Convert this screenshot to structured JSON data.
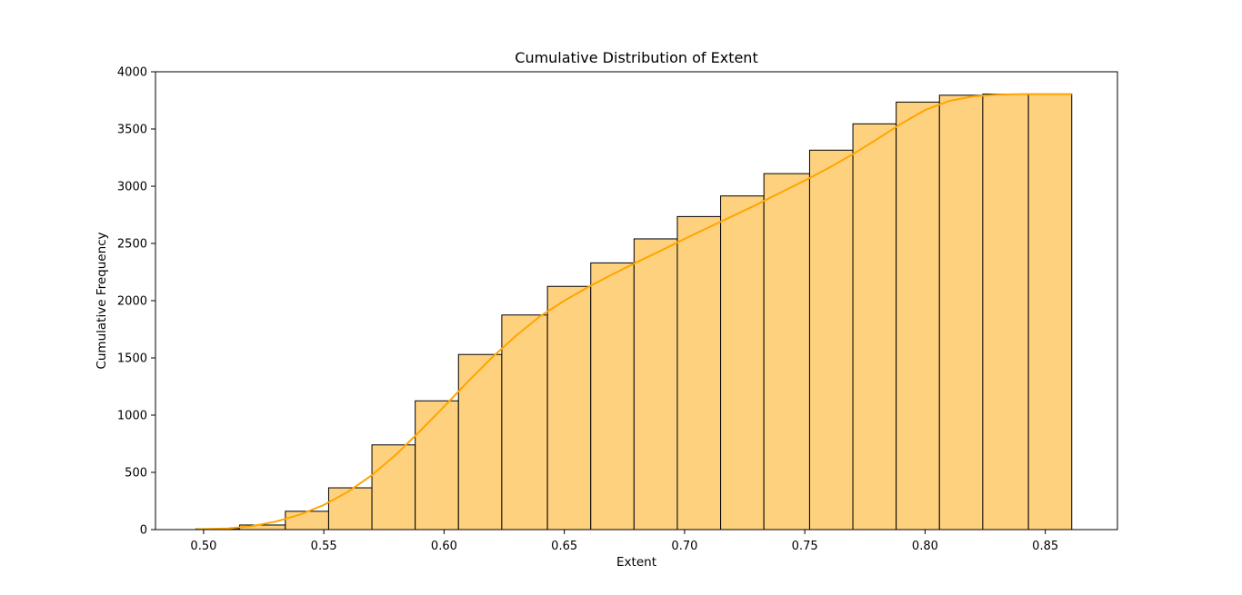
{
  "chart_data": {
    "type": "bar",
    "title": "Cumulative Distribution of Extent",
    "xlabel": "Extent",
    "ylabel": "Cumulative Frequency",
    "xlim": [
      0.48,
      0.88
    ],
    "ylim": [
      0,
      4000
    ],
    "xticks": [
      "0.50",
      "0.55",
      "0.60",
      "0.65",
      "0.70",
      "0.75",
      "0.80",
      "0.85"
    ],
    "yticks": [
      "0",
      "500",
      "1000",
      "1500",
      "2000",
      "2500",
      "3000",
      "3500",
      "4000"
    ],
    "grid": false,
    "bar_fill": "#fed17f",
    "bar_edge": "#000000",
    "line_color": "#ffa500",
    "bins": [
      {
        "x0": 0.497,
        "x1": 0.515,
        "value": 8
      },
      {
        "x0": 0.515,
        "x1": 0.534,
        "value": 40
      },
      {
        "x0": 0.534,
        "x1": 0.552,
        "value": 160
      },
      {
        "x0": 0.552,
        "x1": 0.57,
        "value": 365
      },
      {
        "x0": 0.57,
        "x1": 0.588,
        "value": 740
      },
      {
        "x0": 0.588,
        "x1": 0.606,
        "value": 1125
      },
      {
        "x0": 0.606,
        "x1": 0.624,
        "value": 1530
      },
      {
        "x0": 0.624,
        "x1": 0.643,
        "value": 1875
      },
      {
        "x0": 0.643,
        "x1": 0.661,
        "value": 2125
      },
      {
        "x0": 0.661,
        "x1": 0.679,
        "value": 2330
      },
      {
        "x0": 0.679,
        "x1": 0.697,
        "value": 2540
      },
      {
        "x0": 0.697,
        "x1": 0.715,
        "value": 2735
      },
      {
        "x0": 0.715,
        "x1": 0.733,
        "value": 2915
      },
      {
        "x0": 0.733,
        "x1": 0.752,
        "value": 3110
      },
      {
        "x0": 0.752,
        "x1": 0.77,
        "value": 3315
      },
      {
        "x0": 0.77,
        "x1": 0.788,
        "value": 3545
      },
      {
        "x0": 0.788,
        "x1": 0.806,
        "value": 3735
      },
      {
        "x0": 0.806,
        "x1": 0.824,
        "value": 3795
      },
      {
        "x0": 0.824,
        "x1": 0.843,
        "value": 3805
      },
      {
        "x0": 0.843,
        "x1": 0.861,
        "value": 3805
      }
    ],
    "kde_curve": {
      "x": [
        0.497,
        0.51,
        0.52,
        0.53,
        0.54,
        0.55,
        0.56,
        0.57,
        0.58,
        0.59,
        0.6,
        0.61,
        0.62,
        0.63,
        0.64,
        0.65,
        0.66,
        0.67,
        0.68,
        0.69,
        0.7,
        0.71,
        0.72,
        0.73,
        0.74,
        0.75,
        0.76,
        0.77,
        0.78,
        0.79,
        0.8,
        0.81,
        0.82,
        0.83,
        0.84,
        0.85,
        0.861
      ],
      "y": [
        3,
        10,
        30,
        70,
        130,
        215,
        330,
        475,
        655,
        860,
        1075,
        1295,
        1505,
        1695,
        1865,
        2000,
        2120,
        2230,
        2335,
        2435,
        2540,
        2640,
        2740,
        2840,
        2945,
        3050,
        3160,
        3280,
        3410,
        3545,
        3665,
        3745,
        3785,
        3800,
        3805,
        3805,
        3805
      ]
    }
  }
}
